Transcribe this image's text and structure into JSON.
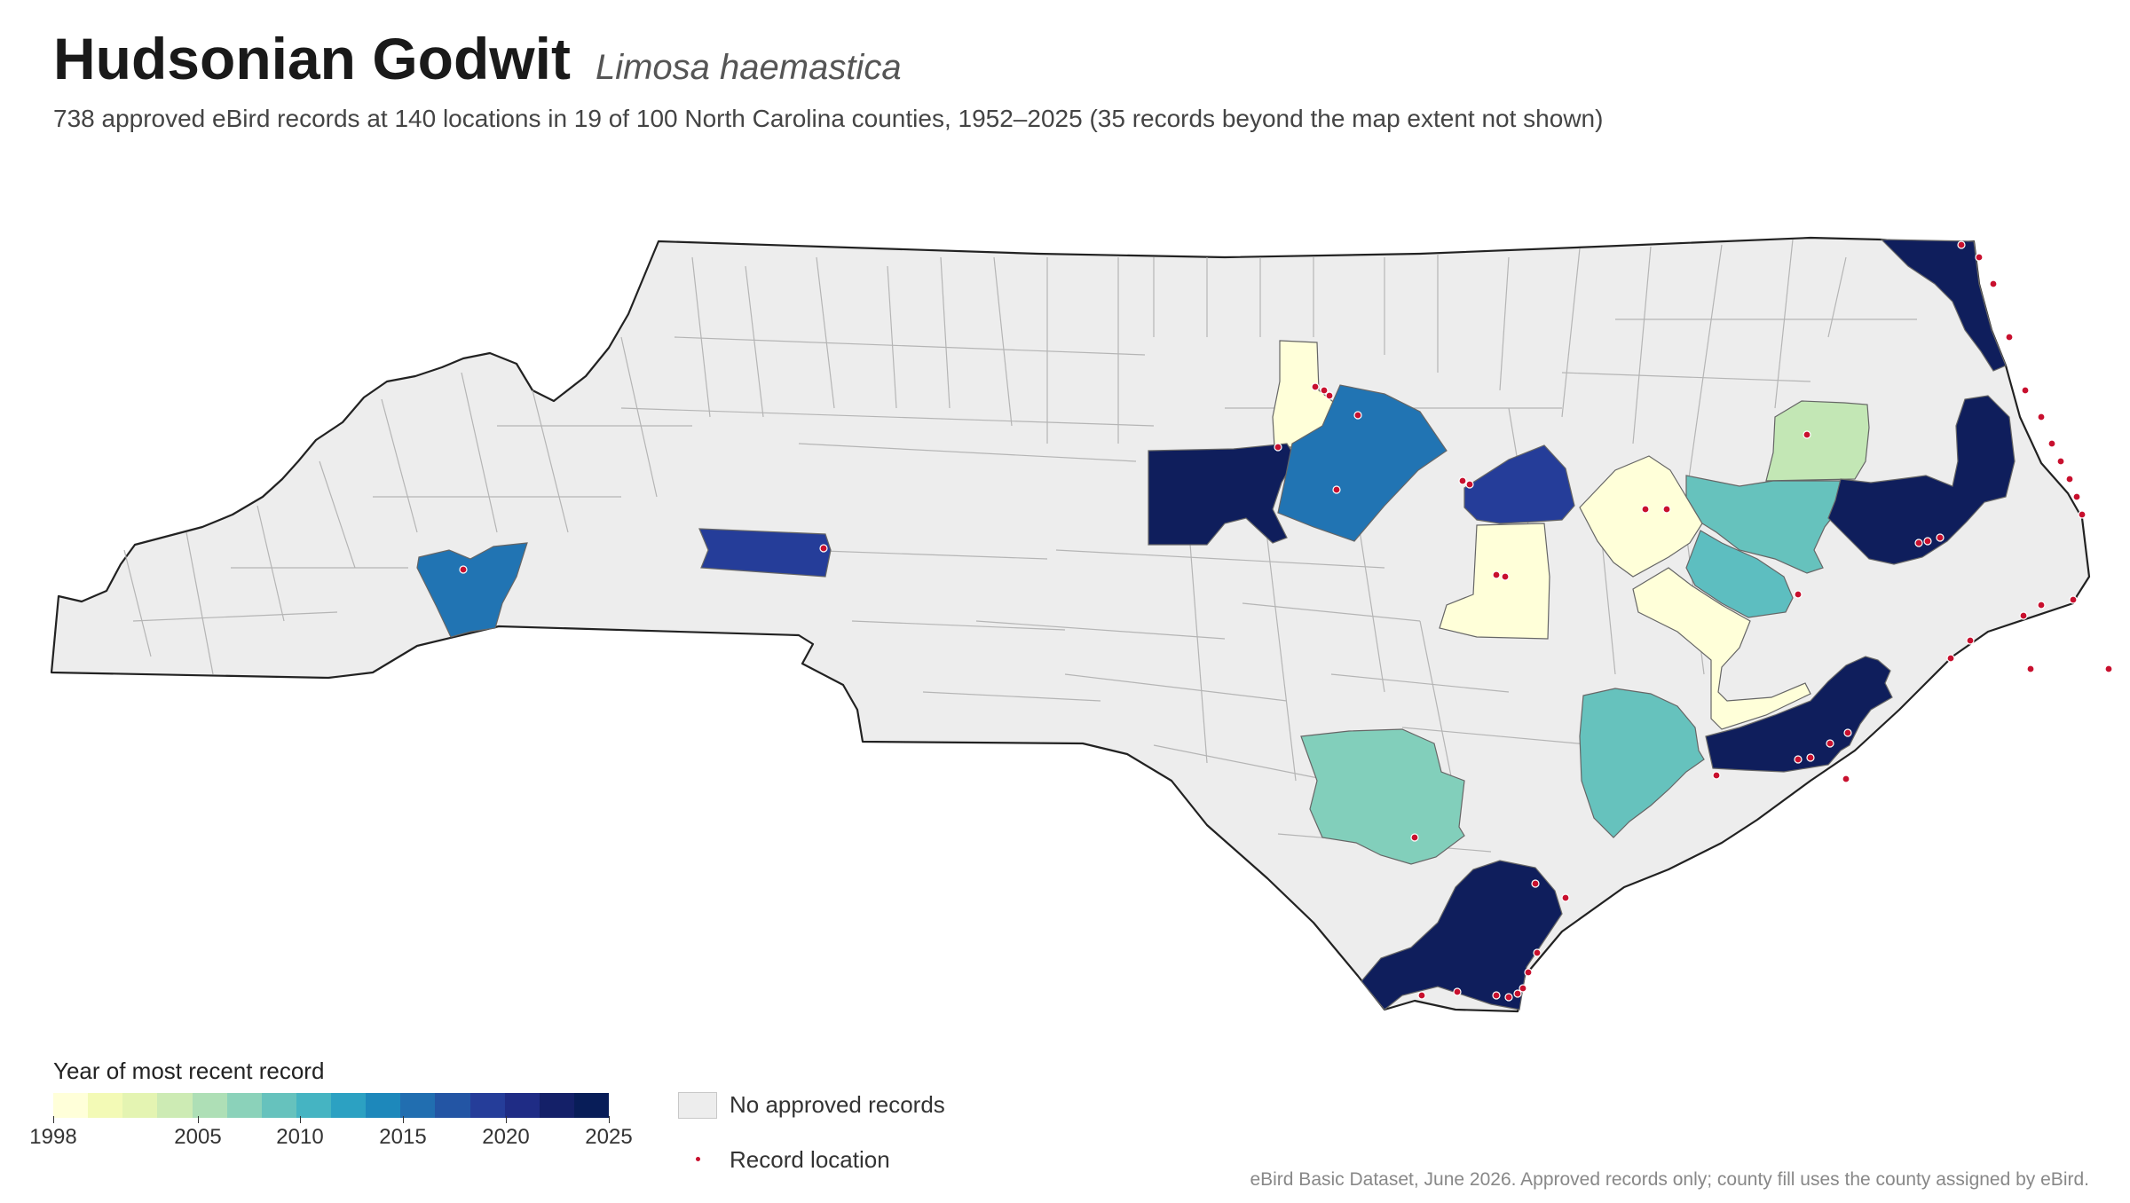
{
  "header": {
    "title": "Hudsonian Godwit",
    "scientific_name": "Limosa haemastica",
    "subtitle": "738 approved eBird records at 140 locations in 19 of 100 North Carolina counties, 1952–2025 (35 records beyond the map extent not shown)"
  },
  "legend": {
    "title": "Year of most recent record",
    "ticks": [
      "1998",
      "2005",
      "2010",
      "2015",
      "2020",
      "2025"
    ],
    "no_data_label": "No approved records",
    "record_label": "Record location",
    "ramp_colors": [
      "#ffffd9",
      "#f3fab6",
      "#e4f4b2",
      "#cdebb4",
      "#aedfb6",
      "#8bd2ba",
      "#66c2bd",
      "#45b4c2",
      "#2ca1c2",
      "#1d88bb",
      "#216eb0",
      "#2355a4",
      "#253d99",
      "#1f2c85",
      "#142068",
      "#081d58"
    ]
  },
  "colors": {
    "no_data": "#ededed",
    "record_dot": "#c8102e",
    "y1998": "#ffffd9",
    "y2008": "#c3e7b5",
    "y2011": "#82cfbb",
    "y2012": "#66c2bd",
    "y2013": "#5dbec0",
    "y2017": "#2174b3",
    "y2022": "#253d99",
    "y2025": "#0f1e5c"
  },
  "source": "eBird Basic Dataset, June 2026. Approved records only; county fill uses the county assigned by eBird."
}
